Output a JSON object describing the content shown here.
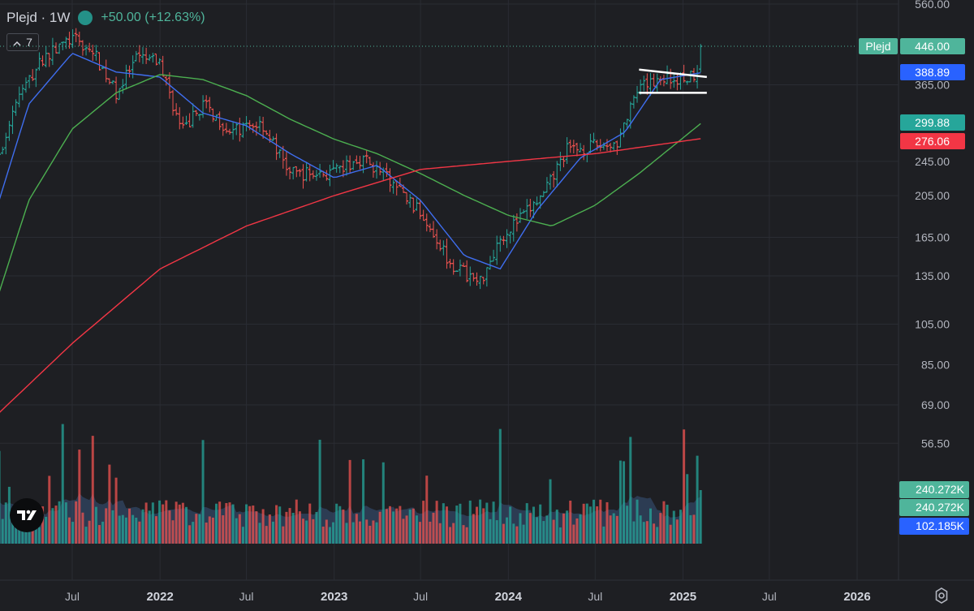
{
  "header": {
    "symbol": "Plejd · 1W",
    "change": "+50.00 (+12.63%)",
    "indicator_count": "7"
  },
  "chart_data": {
    "type": "candlestick",
    "y_scale": "log",
    "price_axis_labels": [
      "560.00",
      "446.00",
      "365.00",
      "299.88",
      "276.06",
      "245.00",
      "205.00",
      "165.00",
      "135.00",
      "105.00",
      "85.00",
      "69.00",
      "56.50"
    ],
    "price_ticks": [
      560,
      365,
      245,
      205,
      165,
      135,
      105,
      85,
      69,
      56.5
    ],
    "time_axis_labels": [
      {
        "label": "Jul",
        "date": "2021-07-01"
      },
      {
        "label": "2022",
        "date": "2022-01-01"
      },
      {
        "label": "Jul",
        "date": "2022-07-01"
      },
      {
        "label": "2023",
        "date": "2023-01-01"
      },
      {
        "label": "Jul",
        "date": "2023-07-01"
      },
      {
        "label": "2024",
        "date": "2024-01-01"
      },
      {
        "label": "Jul",
        "date": "2024-07-01"
      },
      {
        "label": "2025",
        "date": "2025-01-01"
      },
      {
        "label": "Jul",
        "date": "2025-07-01"
      },
      {
        "label": "2026",
        "date": "2026-01-01"
      }
    ],
    "price_path": [
      [
        "2021-01-01",
        190
      ],
      [
        "2021-03-01",
        330
      ],
      [
        "2021-05-01",
        420
      ],
      [
        "2021-07-01",
        465
      ],
      [
        "2021-08-15",
        430
      ],
      [
        "2021-10-01",
        350
      ],
      [
        "2021-11-15",
        420
      ],
      [
        "2022-01-01",
        410
      ],
      [
        "2022-02-15",
        285
      ],
      [
        "2022-04-01",
        330
      ],
      [
        "2022-06-01",
        285
      ],
      [
        "2022-08-01",
        300
      ],
      [
        "2022-10-01",
        230
      ],
      [
        "2023-01-01",
        230
      ],
      [
        "2023-03-01",
        250
      ],
      [
        "2023-05-01",
        220
      ],
      [
        "2023-07-15",
        180
      ],
      [
        "2023-09-01",
        145
      ],
      [
        "2023-11-01",
        130
      ],
      [
        "2023-12-15",
        165
      ],
      [
        "2024-02-01",
        185
      ],
      [
        "2024-03-15",
        205
      ],
      [
        "2024-05-01",
        260
      ],
      [
        "2024-07-01",
        265
      ],
      [
        "2024-08-15",
        270
      ],
      [
        "2024-10-01",
        355
      ],
      [
        "2024-11-15",
        380
      ],
      [
        "2024-12-15",
        375
      ],
      [
        "2025-01-15",
        380
      ],
      [
        "2025-02-05",
        400
      ],
      [
        "2025-02-10",
        446
      ]
    ],
    "series": [
      {
        "name": "Plejd",
        "color": "#4fb59b",
        "last_value": "446.00"
      },
      {
        "color": "#2962ff",
        "last_value": "388.89"
      },
      {
        "color": "#26a69a",
        "last_value": "299.88"
      },
      {
        "color": "#f23645",
        "last_value": "276.06"
      }
    ],
    "ma_lines": [
      {
        "id": "ma-fast",
        "color": "#3f6ef0",
        "period": 10,
        "points": [
          [
            "2021-01-01",
            160
          ],
          [
            "2021-04-01",
            330
          ],
          [
            "2021-07-01",
            430
          ],
          [
            "2021-10-01",
            390
          ],
          [
            "2022-01-01",
            380
          ],
          [
            "2022-04-01",
            315
          ],
          [
            "2022-07-01",
            295
          ],
          [
            "2022-10-01",
            255
          ],
          [
            "2023-01-01",
            225
          ],
          [
            "2023-04-01",
            240
          ],
          [
            "2023-07-01",
            200
          ],
          [
            "2023-10-01",
            150
          ],
          [
            "2023-12-15",
            140
          ],
          [
            "2024-03-01",
            190
          ],
          [
            "2024-06-01",
            250
          ],
          [
            "2024-09-01",
            285
          ],
          [
            "2024-11-15",
            375
          ],
          [
            "2025-02-10",
            389
          ]
        ]
      },
      {
        "id": "ma-mid",
        "color": "#4caf50",
        "period": 40,
        "points": [
          [
            "2021-01-01",
            100
          ],
          [
            "2021-04-01",
            200
          ],
          [
            "2021-07-01",
            290
          ],
          [
            "2021-10-01",
            350
          ],
          [
            "2022-01-01",
            385
          ],
          [
            "2022-04-01",
            375
          ],
          [
            "2022-07-01",
            345
          ],
          [
            "2022-10-01",
            305
          ],
          [
            "2023-01-01",
            275
          ],
          [
            "2023-04-01",
            255
          ],
          [
            "2023-07-01",
            230
          ],
          [
            "2023-10-01",
            205
          ],
          [
            "2024-01-01",
            185
          ],
          [
            "2024-04-01",
            175
          ],
          [
            "2024-07-01",
            195
          ],
          [
            "2024-10-01",
            230
          ],
          [
            "2025-02-10",
            300
          ]
        ]
      },
      {
        "id": "ma-slow",
        "color": "#f23645",
        "period": 200,
        "points": [
          [
            "2021-01-01",
            62
          ],
          [
            "2021-07-01",
            95
          ],
          [
            "2022-01-01",
            140
          ],
          [
            "2022-07-01",
            175
          ],
          [
            "2023-01-01",
            205
          ],
          [
            "2023-07-01",
            235
          ],
          [
            "2024-01-01",
            245
          ],
          [
            "2024-07-01",
            255
          ],
          [
            "2025-02-10",
            276
          ]
        ]
      }
    ],
    "trendlines": [
      {
        "color": "#ffffff",
        "from": [
          "2024-10-01",
          395
        ],
        "to": [
          "2025-02-20",
          380
        ]
      },
      {
        "color": "#ffffff",
        "from": [
          "2024-10-01",
          350
        ],
        "to": [
          "2025-02-20",
          350
        ]
      }
    ],
    "volume_axis_labels": [
      "240.272K",
      "240.272K",
      "102.185K"
    ],
    "volume_label_colors": [
      "#4fb59b",
      "#4fb59b",
      "#2962ff"
    ],
    "volume_ma_color": "#3d5f8f"
  }
}
